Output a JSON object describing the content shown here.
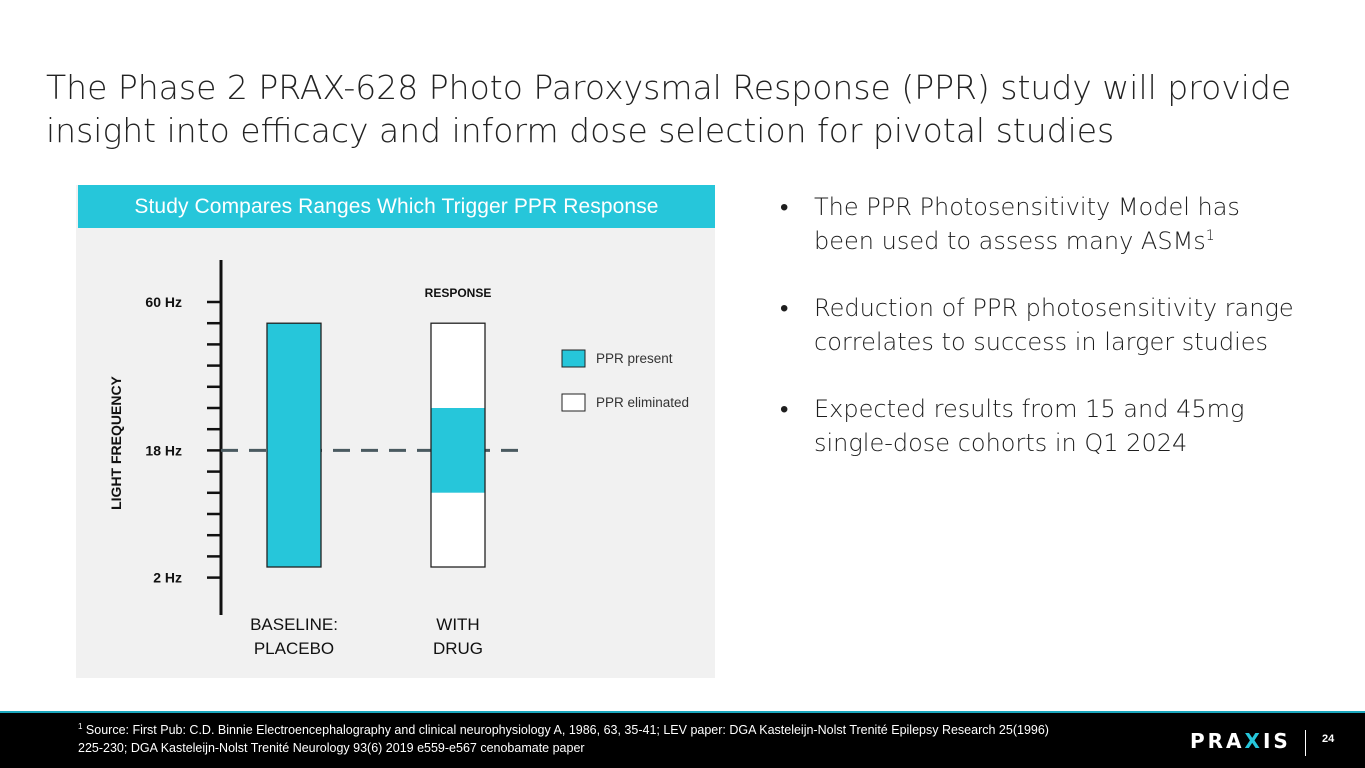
{
  "title": "The Phase 2 PRAX-628 Photo Paroxysmal Response (PPR) study will provide insight into efficacy and inform dose selection for pivotal studies",
  "panel": {
    "header": "Study Compares Ranges Which Trigger PPR Response"
  },
  "bullets": [
    {
      "text": "The PPR Photosensitivity Model has been used to assess many ASMs",
      "sup": "1"
    },
    {
      "text": "Reduction of PPR photosensitivity range correlates to success in larger studies",
      "sup": ""
    },
    {
      "text": "Expected results from 15 and 45mg single-dose cohorts in Q1 2024",
      "sup": ""
    }
  ],
  "footer": {
    "footnote_sup": "1",
    "footnote": " Source: First Pub: C.D. Binnie Electroencephalography and clinical neurophysiology A, 1986, 63, 35-41; LEV paper: DGA Kasteleijn-Nolst Trenité Epilepsy Research 25(1996) 225-230; DGA Kasteleijn-Nolst Trenité Neurology 93(6) 2019 e559-e567 cenobamate paper",
    "logo_left": "PRA",
    "logo_x": "X",
    "logo_right": "IS",
    "page_number": "24"
  },
  "colors": {
    "accent": "#26c6da",
    "panel_bg": "#f1f1f1",
    "footer_bg": "#000000",
    "dashed_line": "#4a5a60"
  },
  "chart_data": {
    "type": "bar",
    "title": "Study Compares Ranges Which Trigger PPR Response",
    "ylabel": "LIGHT FREQUENCY",
    "column_label": "RESPONSE",
    "y_tick_labels": [
      {
        "label": "60 Hz",
        "step": 0
      },
      {
        "label": "18 Hz",
        "step": 7
      },
      {
        "label": "2 Hz",
        "step": 13
      }
    ],
    "tick_count": 14,
    "reference_line_step": 7,
    "categories": [
      "BASELINE: PLACEBO",
      "WITH DRUG"
    ],
    "category_lines": [
      [
        "BASELINE:",
        "PLACEBO"
      ],
      [
        "WITH",
        "DRUG"
      ]
    ],
    "bars": [
      {
        "category": "BASELINE: PLACEBO",
        "range_top_step": 1,
        "range_bottom_step": 12.5,
        "segments": [
          {
            "state": "PPR present",
            "top_step": 1,
            "bottom_step": 12.5
          }
        ]
      },
      {
        "category": "WITH DRUG",
        "range_top_step": 1,
        "range_bottom_step": 12.5,
        "segments": [
          {
            "state": "PPR eliminated",
            "top_step": 1,
            "bottom_step": 5
          },
          {
            "state": "PPR present",
            "top_step": 5,
            "bottom_step": 9
          },
          {
            "state": "PPR eliminated",
            "top_step": 9,
            "bottom_step": 12.5
          }
        ]
      }
    ],
    "legend": [
      {
        "label": "PPR present",
        "color": "#26c6da"
      },
      {
        "label": "PPR eliminated",
        "color": "#ffffff"
      }
    ],
    "legend_position": "right"
  }
}
